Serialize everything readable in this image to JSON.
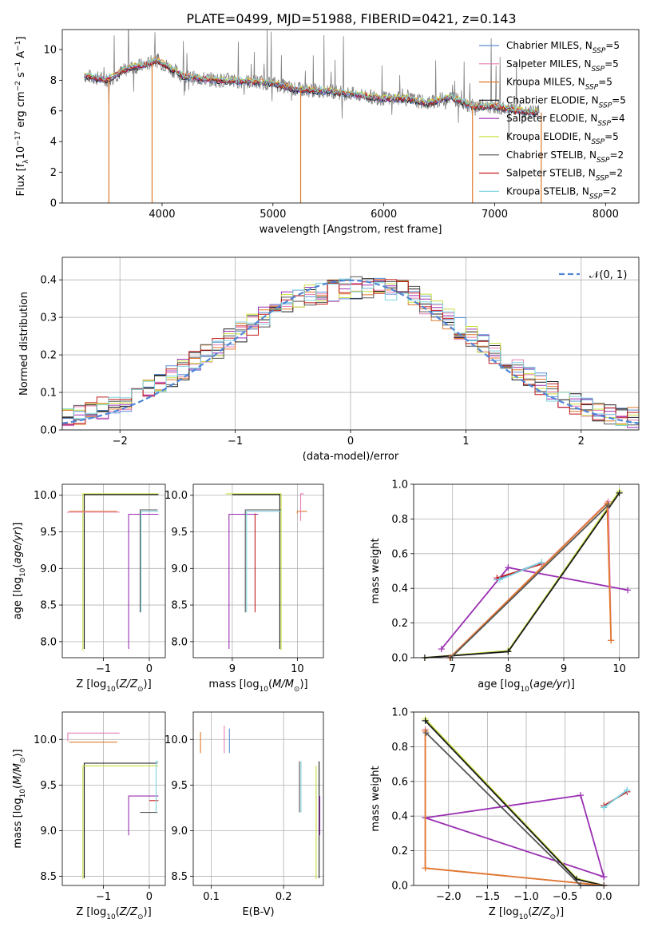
{
  "title": "PLATE=0499, MJD=51988, FIBERID=0421, z=0.143",
  "colors": {
    "Chabrier MILES": "#5a8ed6",
    "Salpeter MILES": "#e87fb5",
    "Kroupa MILES": "#e07a2c",
    "Chabrier ELODIE": "#1a1a1a",
    "Salpeter ELODIE": "#9a2fb2",
    "Kroupa ELODIE": "#c6df3a",
    "Chabrier STELIB": "#555555",
    "Salpeter STELIB": "#c41b1b",
    "Kroupa STELIB": "#7fd3df",
    "data": "#808080",
    "normal": "#4f86d6"
  },
  "chart_data": [
    {
      "type": "line",
      "xlabel": "wavelength [Angstrom, rest frame]",
      "ylabel": "Flux [fλ10^-17 erg cm^-2 s^-1 A^-1]",
      "xlim": [
        3100,
        8300
      ],
      "ylim": [
        0,
        11.3
      ],
      "xticks": [
        "4000",
        "5000",
        "6000",
        "7000",
        "8000"
      ],
      "yticks": [
        "0",
        "2",
        "4",
        "6",
        "8",
        "10"
      ],
      "legend_position": "right",
      "legend": [
        {
          "series": "Chabrier MILES",
          "label": "Chabrier MILES, N",
          "sub": "SSP",
          "tail": "=5"
        },
        {
          "series": "Salpeter MILES",
          "label": "Salpeter MILES, N",
          "sub": "SSP",
          "tail": "=5"
        },
        {
          "series": "Kroupa MILES",
          "label": "Kroupa MILES, N",
          "sub": "SSP",
          "tail": "=5"
        },
        {
          "series": "Chabrier ELODIE",
          "label": "Chabrier ELODIE, N",
          "sub": "SSP",
          "tail": "=5"
        },
        {
          "series": "Salpeter ELODIE",
          "label": "Salpeter ELODIE, N",
          "sub": "SSP",
          "tail": "=4"
        },
        {
          "series": "Kroupa ELODIE",
          "label": "Kroupa ELODIE, N",
          "sub": "SSP",
          "tail": "=5"
        },
        {
          "series": "Chabrier STELIB",
          "label": "Chabrier STELIB, N",
          "sub": "SSP",
          "tail": "=2"
        },
        {
          "series": "Salpeter STELIB",
          "label": "Salpeter STELIB, N",
          "sub": "SSP",
          "tail": "=2"
        },
        {
          "series": "Kroupa STELIB",
          "label": "Kroupa STELIB, N",
          "sub": "SSP",
          "tail": "=2"
        }
      ],
      "continuum": {
        "wavelength": [
          3300,
          3500,
          3700,
          3850,
          3950,
          4050,
          4200,
          4500,
          4800,
          5000,
          5200,
          5500,
          5800,
          6000,
          6200,
          6400,
          6600,
          6800,
          7000,
          7200,
          7400
        ],
        "flux": [
          8.3,
          8.0,
          8.8,
          9.0,
          9.3,
          8.9,
          8.2,
          8.0,
          7.9,
          7.8,
          7.4,
          7.3,
          7.0,
          6.8,
          6.8,
          6.5,
          6.9,
          6.3,
          6.3,
          6.0,
          5.9
        ]
      },
      "dropouts": [
        {
          "wavelength": 3520,
          "flux": 0
        },
        {
          "wavelength": 3910,
          "flux": 0
        },
        {
          "wavelength": 5250,
          "flux": 0
        },
        {
          "wavelength": 6800,
          "flux": 0
        },
        {
          "wavelength": 7420,
          "flux": 0
        }
      ]
    },
    {
      "type": "line",
      "xlabel": "(data-model)/error",
      "ylabel": "Normed distribution",
      "xlim": [
        -2.5,
        2.5
      ],
      "ylim": [
        0,
        0.46
      ],
      "xticks": [
        "−2",
        "−1",
        "0",
        "1",
        "2"
      ],
      "yticks": [
        "0.0",
        "0.1",
        "0.2",
        "0.3",
        "0.4"
      ],
      "grid": true,
      "legend_label": "𝒩(0, 1)",
      "bin_width": 0.1,
      "histogram_profile": {
        "x": [
          -2.5,
          -2.0,
          -1.5,
          -1.0,
          -0.5,
          0.0,
          0.5,
          1.0,
          1.5,
          2.0,
          2.5
        ],
        "y": [
          0.03,
          0.07,
          0.15,
          0.25,
          0.35,
          0.38,
          0.37,
          0.26,
          0.15,
          0.06,
          0.03
        ]
      }
    },
    {
      "type": "scatter",
      "xlabel": "Z [log₁₀(Z/Z⊙)]",
      "ylabel": "age  [log₁₀(age/yr)]",
      "xlim": [
        -1.9,
        0.35
      ],
      "ylim": [
        7.78,
        10.15
      ],
      "xticks": [
        "−1",
        "0"
      ],
      "yticks": [
        "8.0",
        "8.5",
        "9.0",
        "9.5",
        "10.0"
      ],
      "grid": true
    },
    {
      "type": "scatter",
      "xlabel": "mass [log₁₀(M/M⊙)]",
      "ylabel": "",
      "xlim": [
        8.4,
        10.4
      ],
      "ylim": [
        7.78,
        10.15
      ],
      "xticks": [
        "9",
        "10"
      ],
      "yticks": [
        "8.0",
        "8.5",
        "9.0",
        "9.5",
        "10.0"
      ],
      "grid": true
    },
    {
      "type": "line",
      "xlabel": "age  [log₁₀(age/yr)]",
      "ylabel": "mass weight",
      "xlim": [
        6.3,
        10.35
      ],
      "ylim": [
        0,
        1.0
      ],
      "xticks": [
        "7",
        "8",
        "9",
        "10"
      ],
      "yticks": [
        "0.0",
        "0.2",
        "0.4",
        "0.6",
        "0.8",
        "1.0"
      ],
      "grid": true,
      "series": [
        {
          "name": "Salpeter ELODIE",
          "x": [
            6.8,
            8.0,
            10.15
          ],
          "y": [
            0.05,
            0.52,
            0.39
          ]
        },
        {
          "name": "Chabrier MILES",
          "x": [
            7.8,
            8.6
          ],
          "y": [
            0.45,
            0.55
          ]
        },
        {
          "name": "Salpeter STELIB",
          "x": [
            7.8,
            8.6
          ],
          "y": [
            0.46,
            0.54
          ]
        },
        {
          "name": "Kroupa STELIB",
          "x": [
            7.85,
            8.6
          ],
          "y": [
            0.45,
            0.55
          ]
        },
        {
          "name": "Kroupa ELODIE",
          "x": [
            6.5,
            8.0,
            10.0
          ],
          "y": [
            0.0,
            0.04,
            0.96
          ]
        },
        {
          "name": "Chabrier ELODIE",
          "x": [
            6.5,
            8.0,
            10.0
          ],
          "y": [
            0.0,
            0.035,
            0.95
          ]
        },
        {
          "name": "Salpeter MILES",
          "x": [
            6.95,
            9.8,
            9.85
          ],
          "y": [
            0.0,
            0.9,
            0.1
          ]
        },
        {
          "name": "Kroupa MILES",
          "x": [
            6.95,
            9.78,
            9.85
          ],
          "y": [
            0.0,
            0.89,
            0.1
          ]
        },
        {
          "name": "Chabrier STELIB",
          "x": [
            6.97,
            9.8
          ],
          "y": [
            0.0,
            0.88
          ]
        }
      ]
    },
    {
      "type": "scatter",
      "xlabel": "Z [log₁₀(Z/Z⊙)]",
      "ylabel": "mass [log₁₀(M/M⊙)]",
      "xlim": [
        -1.9,
        0.35
      ],
      "ylim": [
        8.4,
        10.3
      ],
      "xticks": [
        "−1",
        "0"
      ],
      "yticks": [
        "8.5",
        "9.0",
        "9.5",
        "10.0"
      ],
      "grid": true
    },
    {
      "type": "scatter",
      "xlabel": "E(B-V)",
      "ylabel": "",
      "xlim": [
        0.075,
        0.255
      ],
      "ylim": [
        8.4,
        10.3
      ],
      "xticks": [
        "0.1",
        "0.2"
      ],
      "yticks": [
        "8.5",
        "9.0",
        "9.5",
        "10.0"
      ],
      "grid": true
    },
    {
      "type": "line",
      "xlabel": "Z [log₁₀(Z/Z⊙)]",
      "ylabel": "mass weight",
      "xlim": [
        -2.45,
        0.45
      ],
      "ylim": [
        0,
        1.0
      ],
      "xticks": [
        "−2.0",
        "−1.5",
        "−1.0",
        "−0.5",
        "0.0"
      ],
      "yticks": [
        "0.0",
        "0.2",
        "0.4",
        "0.6",
        "0.8",
        "1.0"
      ],
      "grid": true,
      "series": [
        {
          "name": "Salpeter ELODIE",
          "x": [
            -2.3,
            -0.3,
            0.0,
            0.0,
            -2.3
          ],
          "y": [
            0.39,
            0.52,
            0.05,
            0.05,
            0.39
          ]
        },
        {
          "name": "Chabrier MILES",
          "x": [
            0.0,
            0.3
          ],
          "y": [
            0.45,
            0.55
          ]
        },
        {
          "name": "Salpeter STELIB",
          "x": [
            0.0,
            0.3
          ],
          "y": [
            0.46,
            0.54
          ]
        },
        {
          "name": "Kroupa STELIB",
          "x": [
            0.0,
            0.3
          ],
          "y": [
            0.45,
            0.55
          ]
        },
        {
          "name": "Kroupa ELODIE",
          "x": [
            -2.3,
            -0.35,
            0.0
          ],
          "y": [
            0.96,
            0.04,
            0.0
          ]
        },
        {
          "name": "Chabrier ELODIE",
          "x": [
            -2.3,
            -0.35,
            0.0
          ],
          "y": [
            0.95,
            0.035,
            0.0
          ]
        },
        {
          "name": "Salpeter MILES",
          "x": [
            -2.3,
            -2.3,
            0.0
          ],
          "y": [
            0.9,
            0.1,
            0.0
          ]
        },
        {
          "name": "Kroupa MILES",
          "x": [
            -2.3,
            -2.3,
            0.0
          ],
          "y": [
            0.89,
            0.1,
            0.0
          ]
        },
        {
          "name": "Chabrier STELIB",
          "x": [
            -2.29,
            -0.3,
            0.0
          ],
          "y": [
            0.88,
            0.0,
            0.0
          ]
        }
      ]
    }
  ]
}
